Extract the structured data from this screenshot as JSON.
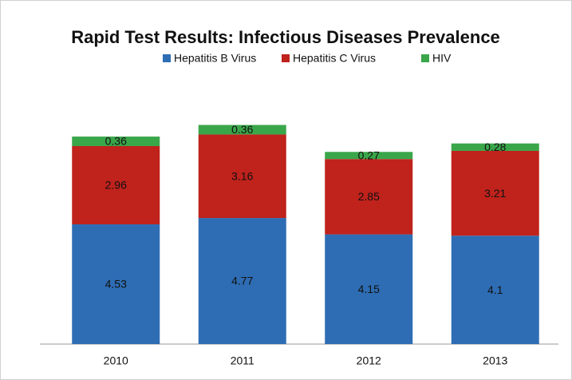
{
  "chart_data": {
    "type": "stacked_bar",
    "title": "Rapid Test Results: Infectious Diseases Prevalence",
    "categories": [
      "2010",
      "2011",
      "2012",
      "2013"
    ],
    "series": [
      {
        "name": "Hepatitis B Virus",
        "color": "#2e6db4",
        "values": [
          4.53,
          4.77,
          4.15,
          4.1
        ]
      },
      {
        "name": "Hepatitis C Virus",
        "color": "#c0221c",
        "values": [
          2.96,
          3.16,
          2.85,
          3.21
        ]
      },
      {
        "name": "HIV",
        "color": "#3aa64a",
        "values": [
          0.36,
          0.36,
          0.27,
          0.28
        ]
      }
    ],
    "ylim": [
      0,
      9
    ],
    "legend": "top"
  }
}
